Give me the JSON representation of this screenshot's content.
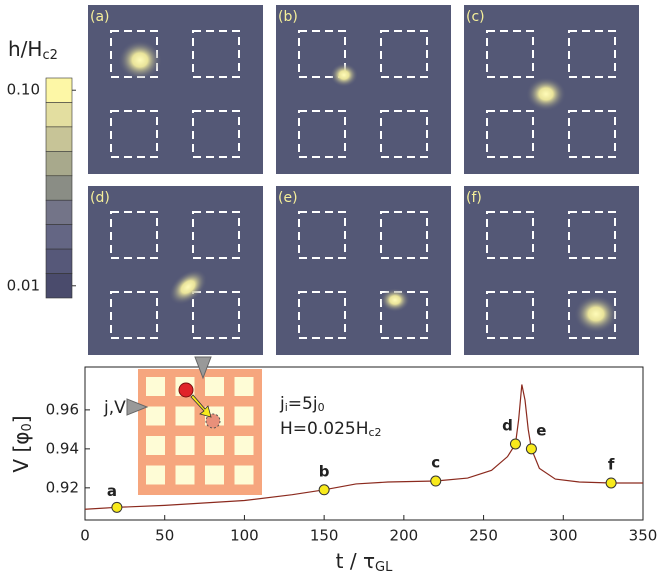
{
  "colorbar": {
    "label": {
      "main": "h/H",
      "sub": "c2"
    },
    "scale": "log",
    "clim": [
      0.01,
      0.1
    ],
    "ticks": [
      {
        "value": 0.1,
        "label": "0.10"
      },
      0.01
    ],
    "colors": [
      "#fdf7a6",
      "#e3dea0",
      "#c7c497",
      "#a8a98c",
      "#8a8d85",
      "#737488",
      "#646684",
      "#565879",
      "#4a4b6c"
    ]
  },
  "panels": {
    "labels": [
      "(a)",
      "(b)",
      "(c)",
      "(d)",
      "(e)",
      "(f)"
    ],
    "background": "#545876"
  },
  "chart_data": {
    "type": "line",
    "xlabel": {
      "main": "t / τ",
      "sub": "GL"
    },
    "ylabel": {
      "main": "V [φ",
      "sub": "0",
      "end": "]"
    },
    "xlim": [
      0,
      350
    ],
    "ylim": [
      0.9035,
      0.982
    ],
    "xticks": [
      0,
      50,
      100,
      150,
      200,
      250,
      300,
      350
    ],
    "yticks": [
      0.92,
      0.94,
      0.96
    ],
    "annotations": {
      "current": {
        "a": "j",
        "b": "i",
        "c": "=5j",
        "d": "0"
      },
      "field": {
        "a": "H=0.025H",
        "b": "c2"
      },
      "inset": "j,V"
    },
    "line": {
      "color": "#8b2a1e",
      "x": [
        0,
        20,
        50,
        100,
        130,
        150,
        170,
        190,
        220,
        240,
        255,
        265,
        270,
        272,
        274,
        276,
        278,
        280,
        285,
        295,
        310,
        330,
        350
      ],
      "values": [
        0.909,
        0.91,
        0.911,
        0.9135,
        0.9165,
        0.919,
        0.922,
        0.923,
        0.9235,
        0.925,
        0.929,
        0.936,
        0.9425,
        0.955,
        0.973,
        0.965,
        0.95,
        0.94,
        0.93,
        0.9245,
        0.923,
        0.9225,
        0.9225
      ]
    },
    "points": {
      "color": "#f8ea1c",
      "labels": [
        "a",
        "b",
        "c",
        "d",
        "e",
        "f"
      ],
      "x": [
        20,
        150,
        220,
        270,
        280,
        330
      ],
      "values": [
        0.91,
        0.919,
        0.9235,
        0.9425,
        0.94,
        0.9225
      ]
    }
  }
}
